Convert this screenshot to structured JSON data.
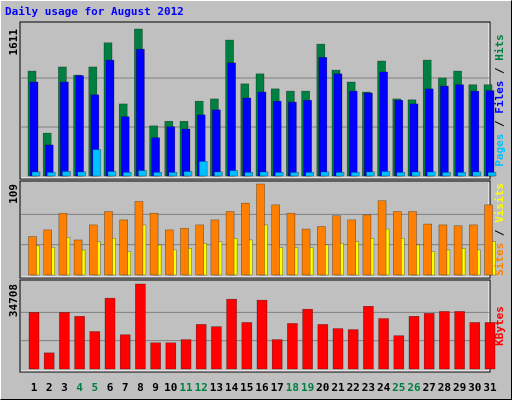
{
  "chart_data": [
    {
      "type": "bar",
      "title": "Daily usage for August 2012",
      "legend_separator": " / ",
      "ylim": [
        0,
        1611
      ],
      "yticks": [
        1611
      ],
      "series": [
        {
          "name": "Pages",
          "color": "#00c0ff",
          "values": [
            45,
            40,
            50,
            45,
            290,
            50,
            40,
            60,
            40,
            40,
            50,
            160,
            45,
            60,
            40,
            45,
            40,
            40,
            40,
            45,
            40,
            40,
            45,
            50,
            40,
            45,
            45,
            40,
            40,
            45,
            40
          ]
        },
        {
          "name": "Files",
          "color": "#0000ff",
          "values": [
            1030,
            340,
            1030,
            1100,
            890,
            1270,
            650,
            1390,
            420,
            540,
            515,
            670,
            725,
            1240,
            855,
            920,
            820,
            810,
            830,
            1300,
            1120,
            930,
            910,
            1140,
            830,
            790,
            955,
            985,
            1000,
            930,
            935
          ]
        },
        {
          "name": "Hits",
          "color": "#008040",
          "values": [
            1150,
            470,
            1195,
            1105,
            1195,
            1460,
            790,
            1611,
            550,
            600,
            600,
            820,
            845,
            1490,
            1010,
            1120,
            955,
            930,
            930,
            1445,
            1160,
            1030,
            920,
            1260,
            845,
            835,
            1270,
            1075,
            1150,
            1000,
            1000
          ]
        }
      ]
    },
    {
      "type": "bar",
      "legend_separator": " / ",
      "ylim": [
        0,
        109
      ],
      "yticks": [
        109
      ],
      "series": [
        {
          "name": "Sites",
          "color": "#ff8000",
          "values": [
            46,
            54,
            74,
            42,
            60,
            76,
            66,
            88,
            74,
            54,
            56,
            60,
            66,
            76,
            86,
            109,
            84,
            74,
            55,
            58,
            71,
            66,
            72,
            89,
            76,
            76,
            61,
            60,
            59,
            60,
            84
          ]
        },
        {
          "name": "Visits",
          "color": "#ffff00",
          "values": [
            35,
            33,
            45,
            30,
            40,
            44,
            28,
            60,
            36,
            30,
            32,
            38,
            40,
            44,
            42,
            60,
            33,
            33,
            33,
            36,
            38,
            40,
            44,
            55,
            44,
            36,
            28,
            30,
            32,
            30,
            40
          ]
        }
      ]
    },
    {
      "type": "bar",
      "ylim": [
        0,
        34708
      ],
      "yticks": [
        34708
      ],
      "series": [
        {
          "name": "KBytes",
          "color": "#ff0000",
          "values": [
            23100,
            6600,
            23100,
            21500,
            15300,
            28900,
            14000,
            34708,
            10700,
            10700,
            12000,
            18200,
            17300,
            28500,
            19000,
            28100,
            12000,
            18600,
            24400,
            18200,
            16500,
            16100,
            25600,
            20600,
            13600,
            21500,
            22700,
            23500,
            23500,
            19000,
            19000
          ]
        }
      ],
      "categories": [
        "1",
        "2",
        "3",
        "4",
        "5",
        "6",
        "7",
        "8",
        "9",
        "10",
        "11",
        "12",
        "13",
        "14",
        "15",
        "16",
        "17",
        "18",
        "19",
        "20",
        "21",
        "22",
        "23",
        "24",
        "25",
        "26",
        "27",
        "28",
        "29",
        "30",
        "31"
      ],
      "category_colors": [
        "#000000",
        "#000000",
        "#000000",
        "#008040",
        "#008040",
        "#000000",
        "#000000",
        "#000000",
        "#000000",
        "#000000",
        "#008040",
        "#008040",
        "#000000",
        "#000000",
        "#000000",
        "#000000",
        "#000000",
        "#008040",
        "#008040",
        "#000000",
        "#000000",
        "#000000",
        "#000000",
        "#000000",
        "#008040",
        "#008040",
        "#000000",
        "#000000",
        "#000000",
        "#000000",
        "#000000"
      ]
    }
  ]
}
